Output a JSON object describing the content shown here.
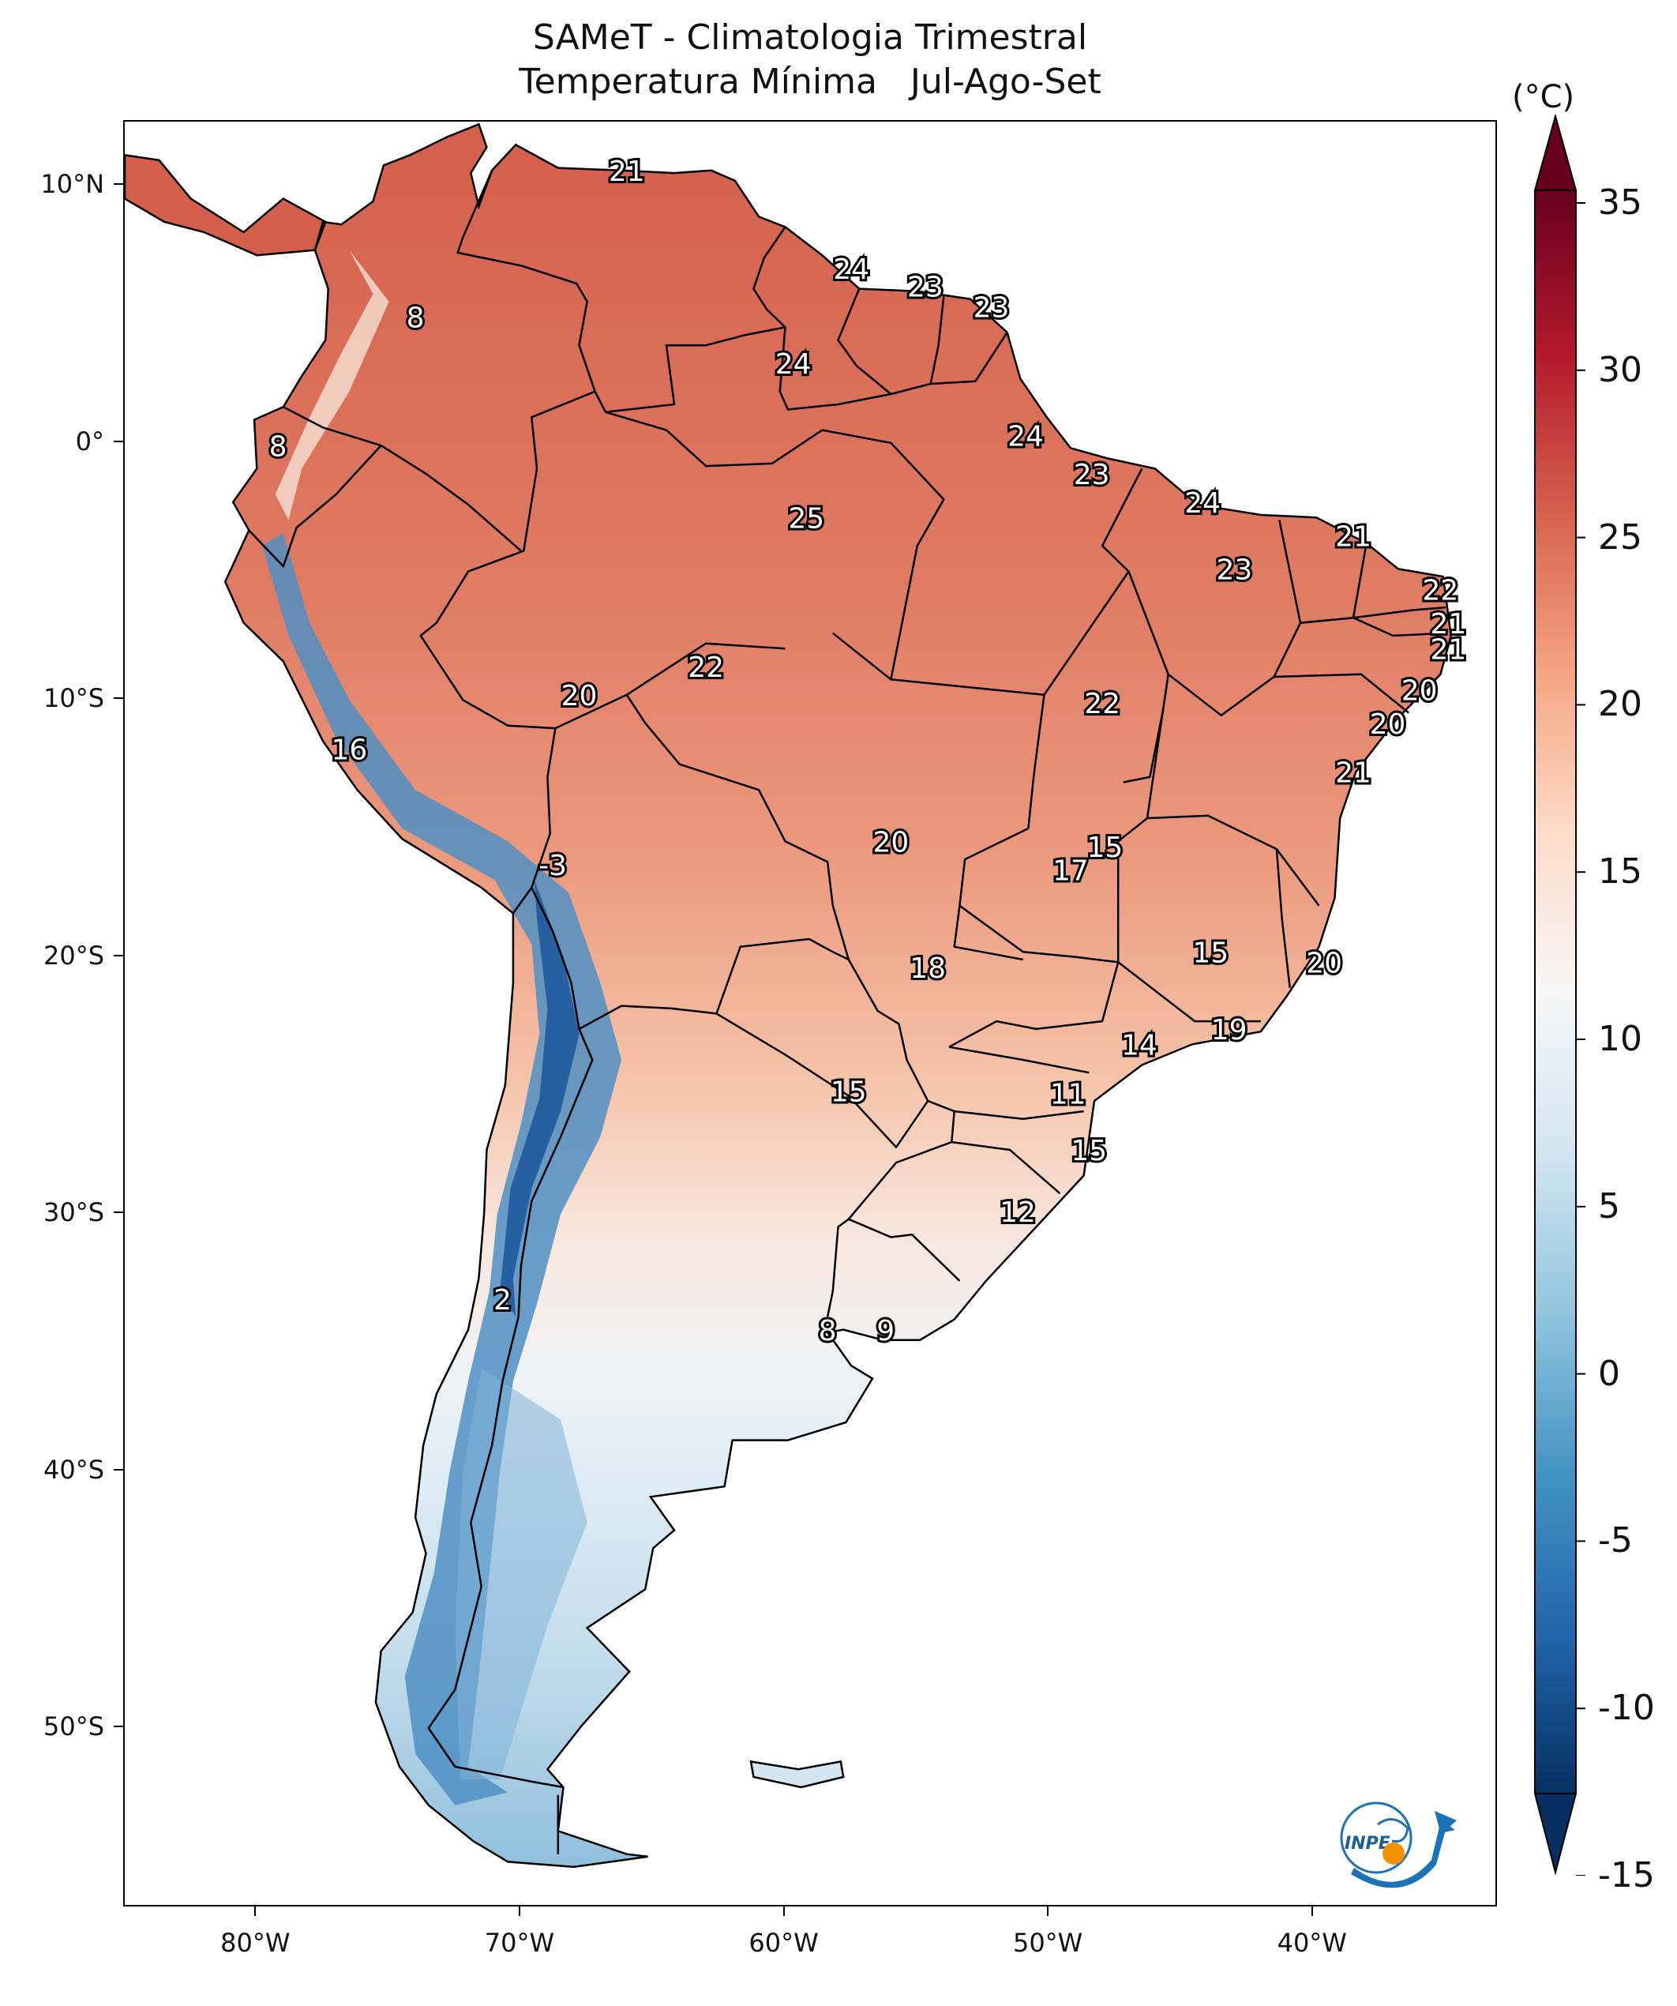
{
  "title": {
    "line1": "SAMeT - Climatologia Trimestral",
    "line2": "Temperatura Mínima   Jul-Ago-Set"
  },
  "map": {
    "lon_range": [
      -85,
      -33
    ],
    "lat_range": [
      -57,
      12.5
    ],
    "lat_ticks": [
      {
        "value": 10,
        "label": "10°N"
      },
      {
        "value": 0,
        "label": "0°"
      },
      {
        "value": -10,
        "label": "10°S"
      },
      {
        "value": -20,
        "label": "20°S"
      },
      {
        "value": -30,
        "label": "30°S"
      },
      {
        "value": -40,
        "label": "40°S"
      },
      {
        "value": -50,
        "label": "50°S"
      }
    ],
    "lon_ticks": [
      {
        "value": -80,
        "label": "80°W"
      },
      {
        "value": -70,
        "label": "70°W"
      },
      {
        "value": -60,
        "label": "60°W"
      },
      {
        "value": -50,
        "label": "50°W"
      },
      {
        "value": -40,
        "label": "40°W"
      }
    ],
    "station_labels": [
      {
        "lon": -66.0,
        "lat": 10.5,
        "text": "21"
      },
      {
        "lon": -57.5,
        "lat": 6.7,
        "text": "24"
      },
      {
        "lon": -54.7,
        "lat": 6.0,
        "text": "23"
      },
      {
        "lon": -52.2,
        "lat": 5.2,
        "text": "23"
      },
      {
        "lon": -74.0,
        "lat": 4.8,
        "text": "8"
      },
      {
        "lon": -59.7,
        "lat": 3.0,
        "text": "24"
      },
      {
        "lon": -50.9,
        "lat": 0.2,
        "text": "24"
      },
      {
        "lon": -79.2,
        "lat": -0.2,
        "text": "8"
      },
      {
        "lon": -48.4,
        "lat": -1.3,
        "text": "23"
      },
      {
        "lon": -44.2,
        "lat": -2.4,
        "text": "24"
      },
      {
        "lon": -59.2,
        "lat": -3.0,
        "text": "25"
      },
      {
        "lon": -38.5,
        "lat": -3.7,
        "text": "21"
      },
      {
        "lon": -43.0,
        "lat": -5.0,
        "text": "23"
      },
      {
        "lon": -35.2,
        "lat": -5.8,
        "text": "22"
      },
      {
        "lon": -34.9,
        "lat": -7.1,
        "text": "21"
      },
      {
        "lon": -34.9,
        "lat": -8.1,
        "text": "21"
      },
      {
        "lon": -63.0,
        "lat": -8.8,
        "text": "22"
      },
      {
        "lon": -36.0,
        "lat": -9.7,
        "text": "20"
      },
      {
        "lon": -67.8,
        "lat": -9.9,
        "text": "20"
      },
      {
        "lon": -48.0,
        "lat": -10.2,
        "text": "22"
      },
      {
        "lon": -37.2,
        "lat": -11.0,
        "text": "20"
      },
      {
        "lon": -76.5,
        "lat": -12.0,
        "text": "16"
      },
      {
        "lon": -38.5,
        "lat": -12.9,
        "text": "21"
      },
      {
        "lon": -56.0,
        "lat": -15.6,
        "text": "20"
      },
      {
        "lon": -47.9,
        "lat": -15.8,
        "text": "15"
      },
      {
        "lon": -49.2,
        "lat": -16.7,
        "text": "17"
      },
      {
        "lon": -68.8,
        "lat": -16.5,
        "text": "-3"
      },
      {
        "lon": -43.9,
        "lat": -19.9,
        "text": "15"
      },
      {
        "lon": -39.6,
        "lat": -20.3,
        "text": "20"
      },
      {
        "lon": -54.6,
        "lat": -20.5,
        "text": "18"
      },
      {
        "lon": -43.2,
        "lat": -22.9,
        "text": "19"
      },
      {
        "lon": -46.6,
        "lat": -23.5,
        "text": "14"
      },
      {
        "lon": -57.6,
        "lat": -25.3,
        "text": "15"
      },
      {
        "lon": -49.3,
        "lat": -25.4,
        "text": "11"
      },
      {
        "lon": -48.5,
        "lat": -27.6,
        "text": "15"
      },
      {
        "lon": -51.2,
        "lat": -30.0,
        "text": "12"
      },
      {
        "lon": -70.7,
        "lat": -33.4,
        "text": "2"
      },
      {
        "lon": -58.4,
        "lat": -34.6,
        "text": "8"
      },
      {
        "lon": -56.2,
        "lat": -34.6,
        "text": "9"
      }
    ]
  },
  "colorbar": {
    "unit": "(°C)",
    "min": -15,
    "max": 35,
    "ticks": [
      "35",
      "30",
      "25",
      "20",
      "15",
      "10",
      "5",
      "0",
      "-5",
      "-10",
      "-15"
    ],
    "tick_values": [
      35,
      30,
      25,
      20,
      15,
      10,
      5,
      0,
      -5,
      -10,
      -15
    ],
    "colors": [
      "#053061",
      "#2166ac",
      "#4393c3",
      "#92c5de",
      "#d1e5f0",
      "#f7f7f7",
      "#fddbc7",
      "#f4a582",
      "#d6604d",
      "#b2182b",
      "#67001f"
    ]
  },
  "logo": {
    "text": "INPE",
    "colors": {
      "blue": "#1a73b8",
      "orange": "#f39200"
    }
  }
}
